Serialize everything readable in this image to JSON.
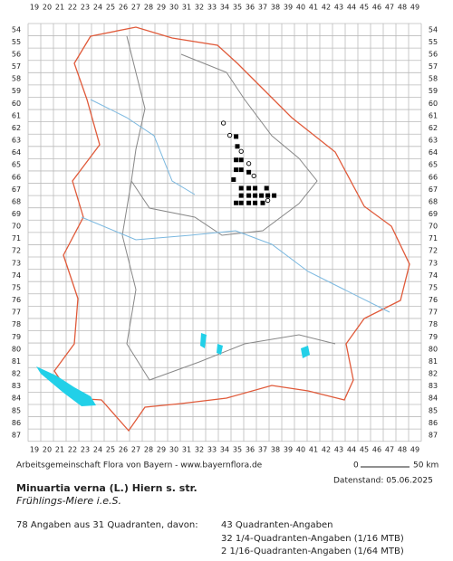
{
  "grid": {
    "columns": [
      19,
      20,
      21,
      22,
      23,
      24,
      25,
      26,
      27,
      28,
      29,
      30,
      31,
      32,
      33,
      34,
      35,
      36,
      37,
      38,
      39,
      40,
      41,
      42,
      43,
      44,
      45,
      46,
      47,
      48,
      49
    ],
    "rows": [
      54,
      55,
      56,
      57,
      58,
      59,
      60,
      61,
      62,
      63,
      64,
      65,
      66,
      67,
      68,
      69,
      70,
      71,
      72,
      73,
      74,
      75,
      76,
      77,
      78,
      79,
      80,
      81,
      82,
      83,
      84,
      85,
      86,
      87
    ]
  },
  "records": {
    "quadrant": [
      [
        34.9,
        62.7
      ],
      [
        35.0,
        63.5
      ],
      [
        34.9,
        64.6
      ],
      [
        35.3,
        64.6
      ],
      [
        34.9,
        65.4
      ],
      [
        35.3,
        65.4
      ],
      [
        35.9,
        65.6
      ],
      [
        34.7,
        66.2
      ],
      [
        35.3,
        66.9
      ],
      [
        35.9,
        66.9
      ],
      [
        36.4,
        66.9
      ],
      [
        37.3,
        66.9
      ],
      [
        35.3,
        67.5
      ],
      [
        35.9,
        67.5
      ],
      [
        36.4,
        67.5
      ],
      [
        36.9,
        67.5
      ],
      [
        37.4,
        67.5
      ],
      [
        37.9,
        67.5
      ],
      [
        34.9,
        68.1
      ],
      [
        35.3,
        68.1
      ],
      [
        36.4,
        68.1
      ],
      [
        35.9,
        68.1
      ],
      [
        37.0,
        68.1
      ]
    ],
    "open": [
      [
        33.9,
        61.6
      ],
      [
        34.4,
        62.6
      ],
      [
        35.3,
        63.9
      ],
      [
        35.9,
        64.9
      ],
      [
        36.3,
        65.9
      ],
      [
        37.4,
        67.9
      ]
    ]
  },
  "footer": {
    "source": "Arbeitsgemeinschaft Flora von Bayern - www.bayernflora.de",
    "scale_start": "0",
    "scale_end": "50 km",
    "date": "Datenstand: 05.06.2025"
  },
  "species": {
    "name": "Minuartia verna (L.) Hiern s. str.",
    "common_name": "Frühlings-Miere i.e.S."
  },
  "summary": {
    "total": "78 Angaben aus 31 Quadranten, davon:",
    "lines": [
      "43 Quadranten-Angaben",
      "32 1/4-Quadranten-Angaben (1/16 MTB)",
      "2 1/16-Quadranten-Angaben (1/64 MTB)"
    ]
  }
}
